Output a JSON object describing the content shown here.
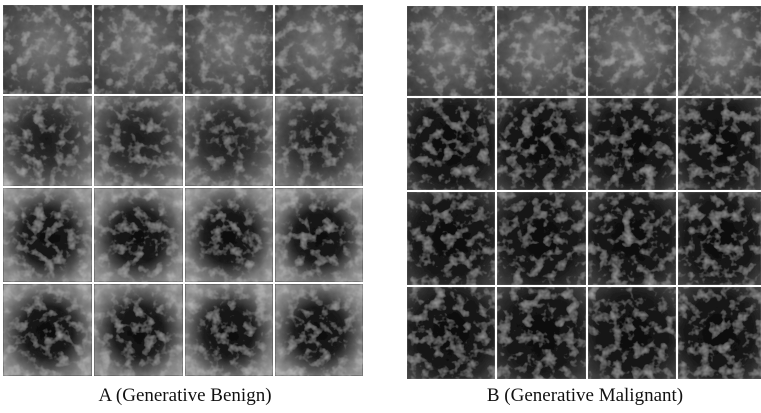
{
  "panels": [
    {
      "caption": "A (Generative Benign)"
    },
    {
      "caption": "B (Generative Malignant)"
    }
  ]
}
